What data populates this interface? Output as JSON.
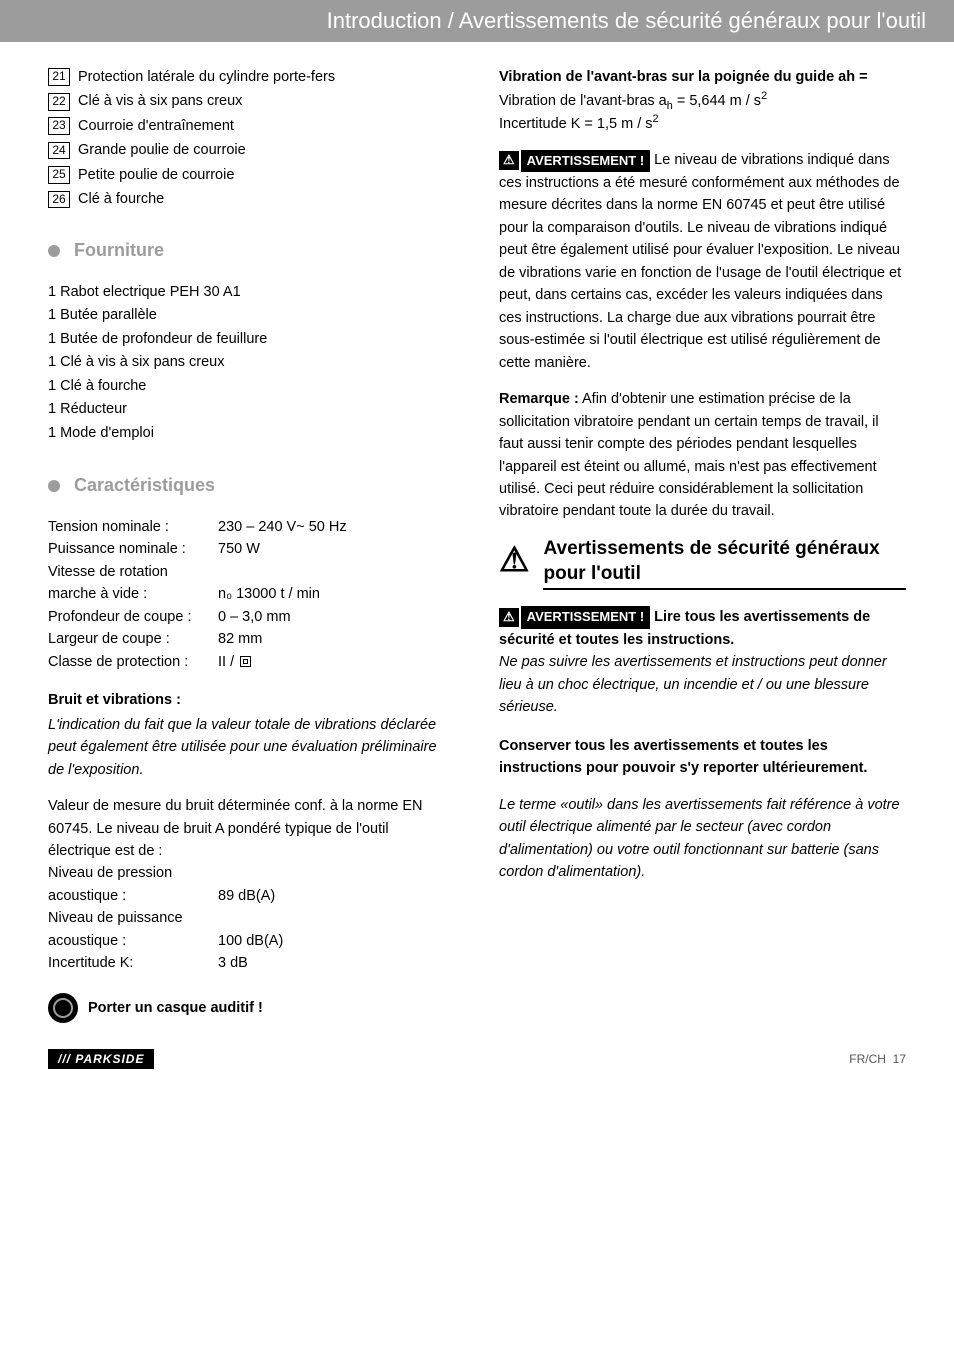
{
  "header": "Introduction / Avertissements de sécurité généraux pour l'outil",
  "parts": [
    {
      "n": "21",
      "t": "Protection latérale du cylindre porte-fers"
    },
    {
      "n": "22",
      "t": "Clé à vis à six pans creux"
    },
    {
      "n": "23",
      "t": "Courroie d'entraînement"
    },
    {
      "n": "24",
      "t": "Grande poulie de courroie"
    },
    {
      "n": "25",
      "t": "Petite poulie de courroie"
    },
    {
      "n": "26",
      "t": "Clé à fourche"
    }
  ],
  "supply": {
    "title": "Fourniture",
    "items": [
      "1 Rabot electrique PEH 30 A1",
      "1 Butée parallèle",
      "1 Butée de profondeur de feuillure",
      "1 Clé à vis à six pans creux",
      "1 Clé à fourche",
      "1 Réducteur",
      "1 Mode d'emploi"
    ]
  },
  "specs": {
    "title": "Caractéristiques",
    "rows": [
      {
        "l": "Tension nominale :",
        "v": "230 – 240 V~ 50 Hz"
      },
      {
        "l": "Puissance nominale :",
        "v": "750 W"
      },
      {
        "l": "Vitesse de rotation",
        "v": ""
      },
      {
        "l": "marche à vide :",
        "v": "n₀ 13000 t / min"
      },
      {
        "l": "Profondeur de coupe :",
        "v": "0 – 3,0 mm"
      },
      {
        "l": "Largeur de coupe :",
        "v": "82 mm"
      }
    ],
    "protection_label": "Classe de protection :",
    "protection_value": "II / "
  },
  "noise": {
    "title": "Bruit et vibrations :",
    "intro": "L'indication du fait que la valeur totale de vibrations déclarée peut également être utilisée pour une évaluation préliminaire de l'exposition.",
    "para2": "Valeur de mesure du bruit déterminée conf. à la norme EN 60745. Le niveau de bruit A pondéré typique de l'outil électrique est de :",
    "rows": [
      {
        "l": "Niveau de pression",
        "v": ""
      },
      {
        "l": "acoustique :",
        "v": "89 dB(A)"
      },
      {
        "l": "Niveau de puissance",
        "v": ""
      },
      {
        "l": "acoustique :",
        "v": "100 dB(A)"
      },
      {
        "l": "Incertitude K:",
        "v": "3 dB"
      }
    ],
    "ear": "Porter un casque auditif !"
  },
  "vib": {
    "title": "Vibration de l'avant-bras sur la poignée du guide ah =",
    "l1_pre": "Vibration de l'avant-bras a",
    "l1_post": " = 5,644 m / s",
    "l2_pre": "Incertitude K = 1,5 m / s"
  },
  "warn_word": "AVERTISSEMENT !",
  "warn1": " Le niveau de vibrations indiqué dans ces instructions a été mesuré conformément aux méthodes de mesure décrites dans la norme EN 60745 et peut être utilisé pour la comparaison d'outils. Le niveau de vibrations indiqué peut être également utilisé pour évaluer l'exposition. Le niveau de vibrations varie en fonction de l'usage de l'outil électrique et peut, dans certains cas, excéder les valeurs indiquées dans ces instructions. La charge due aux vibrations pourrait être sous-estimée si l'outil électrique est utilisé régulièrement de cette manière.",
  "remark_label": "Remarque :",
  "remark": " Afin d'obtenir une estimation précise de la sollicitation vibratoire pendant un certain temps de travail, il faut aussi tenir compte des périodes pendant lesquelles l'appareil est éteint ou allumé, mais n'est pas effectivement utilisé. Ceci peut réduire considérablement la sollicitation vibratoire pendant toute la durée du travail.",
  "bighead": "Avertissements de sécurité généraux pour l'outil",
  "warn2_bold": " Lire tous les avertissements de sécurité et toutes les instructions.",
  "warn2_it": "Ne pas suivre les avertissements et instructions peut donner lieu à un choc électrique, un incendie et / ou une blessure sérieuse.",
  "keep": "Conserver tous les avertissements et toutes les instructions pour pouvoir s'y reporter ultérieurement.",
  "term": "Le terme «outil» dans les avertissements fait référence à votre outil électrique alimenté par le secteur (avec cordon d'alimentation) ou votre outil fonctionnant sur batterie (sans cordon d'alimentation).",
  "footer": {
    "brand": "/// PARKSIDE",
    "page_label": "FR/CH",
    "page_num": "17"
  }
}
